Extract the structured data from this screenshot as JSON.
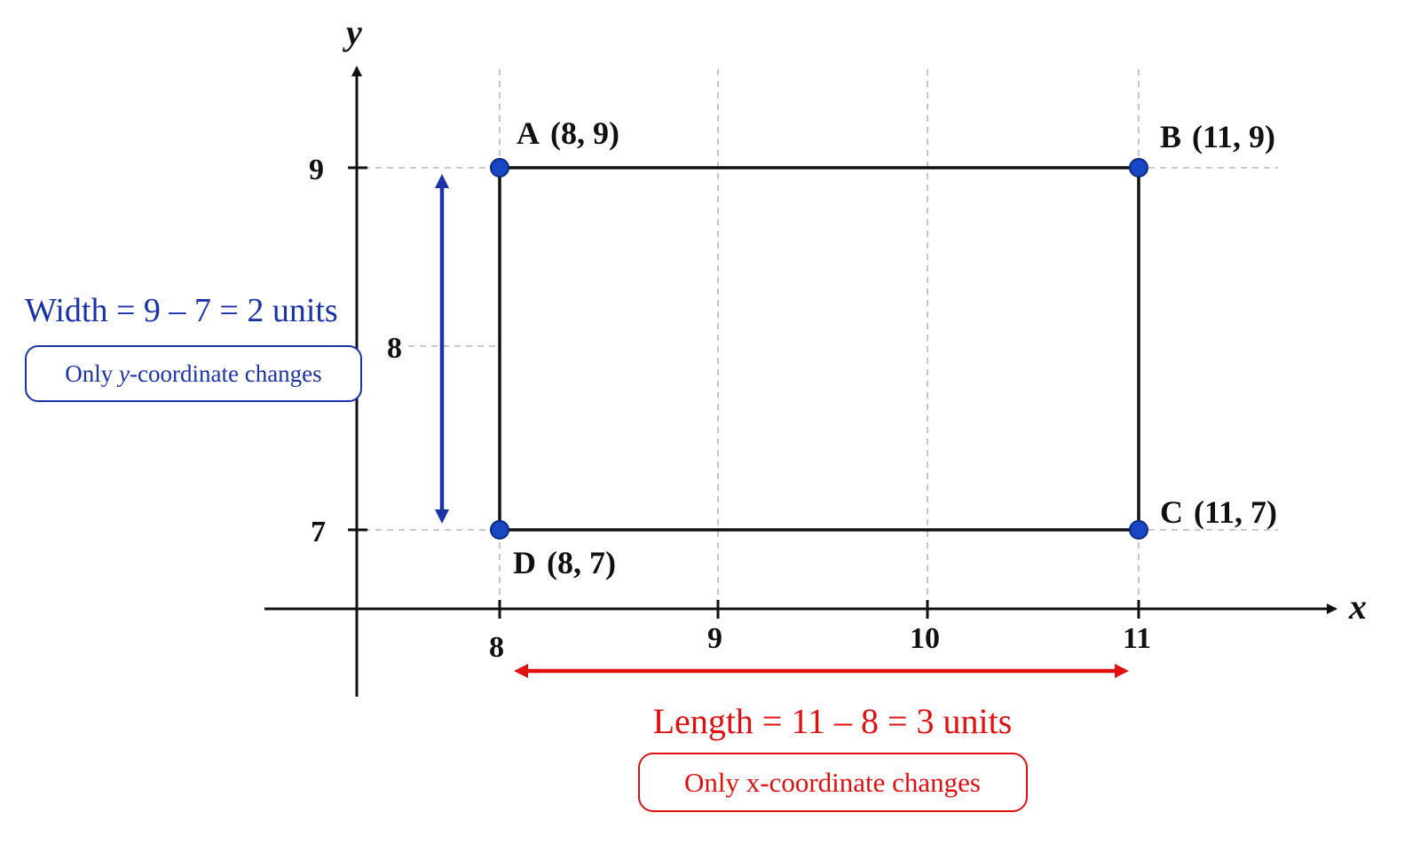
{
  "axes": {
    "x_name": "x",
    "y_name": "y",
    "x_ticks": [
      "8",
      "9",
      "10",
      "11"
    ],
    "y_ticks": [
      "9",
      "8",
      "7"
    ]
  },
  "points": {
    "A": {
      "letter": "A",
      "coords": "(8, 9)"
    },
    "B": {
      "letter": "B",
      "coords": "(11, 9)"
    },
    "C": {
      "letter": "C",
      "coords": "(11, 7)"
    },
    "D": {
      "letter": "D",
      "coords": "(8, 7)"
    }
  },
  "width_annotation": {
    "equation": "Width = 9 – 7 = 2 units",
    "note_prefix": "Only ",
    "note_italic": "y",
    "note_suffix": "-coordinate changes"
  },
  "length_annotation": {
    "equation": "Length = 11 – 8 = 3 units",
    "note": "Only x-coordinate changes"
  },
  "colors": {
    "width": "#1a33a8",
    "length": "#e01010",
    "point_fill": "#1747c4"
  }
}
